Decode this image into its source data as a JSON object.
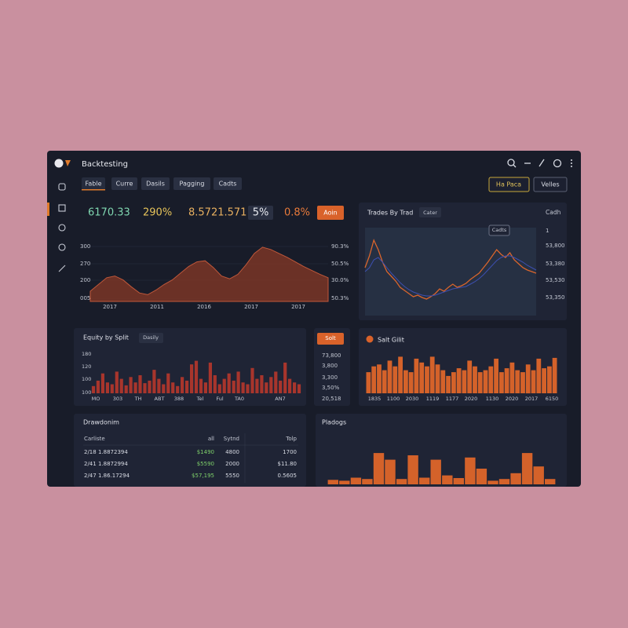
{
  "header": {
    "title": "Backtesting"
  },
  "tabs": [
    "Fable",
    "Curre",
    "Dasils",
    "Pagging",
    "Cadts"
  ],
  "actions": [
    "Ha Paca",
    "Velles"
  ],
  "stats": [
    "6170.33",
    "290%",
    "8.5721.571",
    "5%",
    "0.8%"
  ],
  "stats_button": "Aoin",
  "equity_chart": {
    "y_labels": [
      "300",
      "270",
      "200",
      "005"
    ],
    "y2_labels": [
      "90.3%",
      "50.5%",
      "30.0%",
      "50.3%"
    ],
    "x_labels": [
      "2017",
      "2011",
      "2016",
      "2017",
      "2017"
    ],
    "ylim": [
      0,
      100
    ],
    "color": "#7a3526",
    "values": [
      18,
      30,
      42,
      45,
      38,
      26,
      15,
      12,
      20,
      30,
      38,
      50,
      62,
      70,
      72,
      60,
      45,
      40,
      48,
      65,
      85,
      96,
      92,
      85,
      78,
      70,
      62,
      55,
      48,
      42
    ]
  },
  "trades_panel": {
    "title": "Trades By Trad",
    "tag": "Cater",
    "axis_title": "Cadh",
    "callout": "Cadts",
    "y_labels": [
      "1",
      "53,800",
      "53,380",
      "53,530",
      "53,350"
    ],
    "ylim": [
      0,
      100
    ],
    "series": [
      {
        "color": "#d9652c",
        "values": [
          55,
          70,
          90,
          78,
          62,
          50,
          44,
          38,
          30,
          26,
          22,
          18,
          20,
          17,
          15,
          18,
          22,
          28,
          25,
          30,
          34,
          30,
          32,
          35,
          40,
          44,
          48,
          55,
          62,
          70,
          78,
          72,
          68,
          74,
          65,
          60,
          55,
          52,
          50,
          48
        ]
      },
      {
        "color": "#3d4fb0",
        "values": [
          50,
          55,
          65,
          68,
          62,
          55,
          48,
          42,
          36,
          31,
          27,
          24,
          22,
          20,
          19,
          19,
          20,
          22,
          24,
          26,
          28,
          29,
          30,
          31,
          34,
          37,
          41,
          46,
          52,
          58,
          64,
          68,
          70,
          70,
          68,
          65,
          62,
          58,
          55,
          52
        ]
      }
    ]
  },
  "equity_by_split": {
    "title": "Equity by Split",
    "tag": "Dasily",
    "y_labels": [
      "180",
      "120",
      "100",
      "100"
    ],
    "x_labels": [
      "MO",
      "303",
      "TH",
      "ABT",
      "388",
      "Tel",
      "Ful",
      "TA0",
      "AN7"
    ],
    "ylim": [
      0,
      100
    ],
    "color": "#a8352c",
    "values": [
      20,
      35,
      55,
      30,
      25,
      60,
      40,
      22,
      45,
      30,
      50,
      28,
      35,
      65,
      40,
      25,
      55,
      30,
      20,
      45,
      35,
      80,
      90,
      40,
      30,
      85,
      50,
      25,
      40,
      55,
      35,
      60,
      30,
      25,
      70,
      40,
      50,
      30,
      45,
      60,
      35,
      85,
      40,
      30,
      25
    ]
  },
  "side_column": {
    "button": "Solt",
    "values": [
      "73,800",
      "3,800",
      "3,300",
      "3,50%",
      "20,518"
    ]
  },
  "split_panel": {
    "title": "Salt Gilit",
    "x_labels": [
      "1835",
      "1100",
      "2030",
      "1119",
      "1177",
      "2020",
      "1130",
      "2020",
      "2017",
      "6150"
    ],
    "ylim": [
      0,
      100
    ],
    "color": "#d4622a",
    "values": [
      55,
      70,
      75,
      60,
      85,
      70,
      95,
      60,
      55,
      90,
      80,
      70,
      95,
      75,
      60,
      45,
      55,
      65,
      60,
      85,
      70,
      55,
      60,
      70,
      90,
      55,
      65,
      80,
      60,
      55,
      75,
      60,
      90,
      65,
      70,
      92
    ]
  },
  "drawdown": {
    "title": "Drawdonim",
    "columns": [
      "Carliste",
      "all",
      "Sytnd",
      "Tolp"
    ],
    "rows": [
      [
        "2/18  1.8872394",
        "$1490",
        "4800",
        "1700"
      ],
      [
        "2/41  1.8872994",
        "$5590",
        "2000",
        "$11.80"
      ],
      [
        "2/47  1.86.17294",
        "$57,195",
        "5550",
        "0.5605"
      ]
    ]
  },
  "pledges": {
    "title": "Pladogs",
    "ylim": [
      0,
      100
    ],
    "color": "#d4622a",
    "values": [
      10,
      8,
      15,
      12,
      70,
      55,
      12,
      65,
      15,
      55,
      20,
      14,
      60,
      35,
      8,
      12,
      25,
      70,
      40,
      12
    ]
  }
}
